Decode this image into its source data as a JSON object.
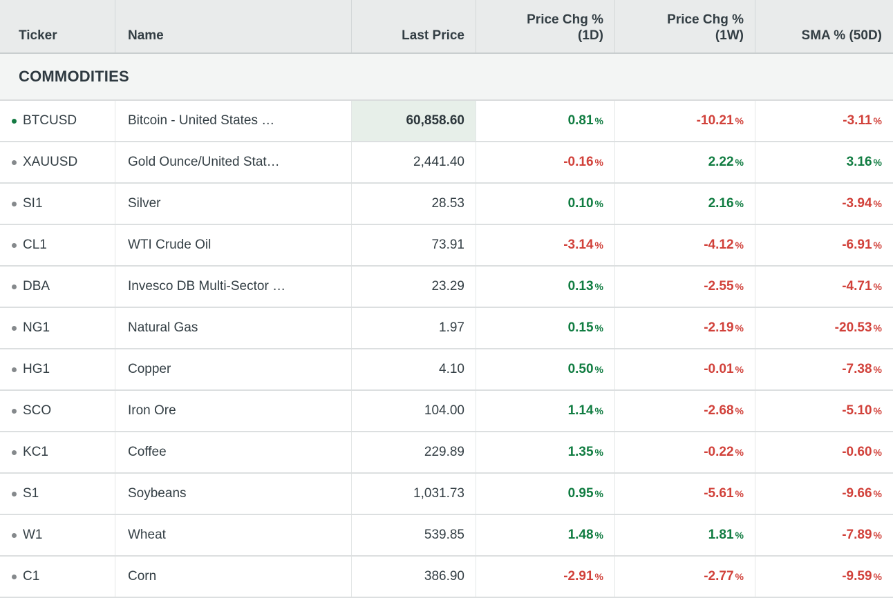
{
  "table": {
    "percent_suffix": "%",
    "columns": [
      {
        "key": "ticker",
        "lines": [
          "Ticker"
        ]
      },
      {
        "key": "name",
        "lines": [
          "Name"
        ]
      },
      {
        "key": "last_price",
        "lines": [
          "Last Price"
        ]
      },
      {
        "key": "chg_1d",
        "lines": [
          "Price Chg %",
          "(1D)"
        ]
      },
      {
        "key": "chg_1w",
        "lines": [
          "Price Chg %",
          "(1W)"
        ]
      },
      {
        "key": "sma_50d",
        "lines": [
          "SMA % (50D)"
        ]
      }
    ],
    "section": {
      "title": "COMMODITIES"
    },
    "rows": [
      {
        "ticker": "BTCUSD",
        "bullet": "green",
        "name": "Bitcoin - United States …",
        "last_price": "60,858.60",
        "price_highlight": true,
        "chg_1d": {
          "value": "0.81",
          "dir": "up"
        },
        "chg_1w": {
          "value": "-10.21",
          "dir": "down"
        },
        "sma_50d": {
          "value": "-3.11",
          "dir": "down"
        }
      },
      {
        "ticker": "XAUUSD",
        "bullet": "gray",
        "name": "Gold Ounce/United Stat…",
        "last_price": "2,441.40",
        "price_highlight": false,
        "chg_1d": {
          "value": "-0.16",
          "dir": "down"
        },
        "chg_1w": {
          "value": "2.22",
          "dir": "up"
        },
        "sma_50d": {
          "value": "3.16",
          "dir": "up"
        }
      },
      {
        "ticker": "SI1",
        "bullet": "gray",
        "name": "Silver",
        "last_price": "28.53",
        "price_highlight": false,
        "chg_1d": {
          "value": "0.10",
          "dir": "up"
        },
        "chg_1w": {
          "value": "2.16",
          "dir": "up"
        },
        "sma_50d": {
          "value": "-3.94",
          "dir": "down"
        }
      },
      {
        "ticker": "CL1",
        "bullet": "gray",
        "name": "WTI Crude Oil",
        "last_price": "73.91",
        "price_highlight": false,
        "chg_1d": {
          "value": "-3.14",
          "dir": "down"
        },
        "chg_1w": {
          "value": "-4.12",
          "dir": "down"
        },
        "sma_50d": {
          "value": "-6.91",
          "dir": "down"
        }
      },
      {
        "ticker": "DBA",
        "bullet": "gray",
        "name": "Invesco DB Multi-Sector …",
        "last_price": "23.29",
        "price_highlight": false,
        "chg_1d": {
          "value": "0.13",
          "dir": "up"
        },
        "chg_1w": {
          "value": "-2.55",
          "dir": "down"
        },
        "sma_50d": {
          "value": "-4.71",
          "dir": "down"
        }
      },
      {
        "ticker": "NG1",
        "bullet": "gray",
        "name": "Natural Gas",
        "last_price": "1.97",
        "price_highlight": false,
        "chg_1d": {
          "value": "0.15",
          "dir": "up"
        },
        "chg_1w": {
          "value": "-2.19",
          "dir": "down"
        },
        "sma_50d": {
          "value": "-20.53",
          "dir": "down"
        }
      },
      {
        "ticker": "HG1",
        "bullet": "gray",
        "name": "Copper",
        "last_price": "4.10",
        "price_highlight": false,
        "chg_1d": {
          "value": "0.50",
          "dir": "up"
        },
        "chg_1w": {
          "value": "-0.01",
          "dir": "down"
        },
        "sma_50d": {
          "value": "-7.38",
          "dir": "down"
        }
      },
      {
        "ticker": "SCO",
        "bullet": "gray",
        "name": "Iron Ore",
        "last_price": "104.00",
        "price_highlight": false,
        "chg_1d": {
          "value": "1.14",
          "dir": "up"
        },
        "chg_1w": {
          "value": "-2.68",
          "dir": "down"
        },
        "sma_50d": {
          "value": "-5.10",
          "dir": "down"
        }
      },
      {
        "ticker": "KC1",
        "bullet": "gray",
        "name": "Coffee",
        "last_price": "229.89",
        "price_highlight": false,
        "chg_1d": {
          "value": "1.35",
          "dir": "up"
        },
        "chg_1w": {
          "value": "-0.22",
          "dir": "down"
        },
        "sma_50d": {
          "value": "-0.60",
          "dir": "down"
        }
      },
      {
        "ticker": "S1",
        "bullet": "gray",
        "name": "Soybeans",
        "last_price": "1,031.73",
        "price_highlight": false,
        "chg_1d": {
          "value": "0.95",
          "dir": "up"
        },
        "chg_1w": {
          "value": "-5.61",
          "dir": "down"
        },
        "sma_50d": {
          "value": "-9.66",
          "dir": "down"
        }
      },
      {
        "ticker": "W1",
        "bullet": "gray",
        "name": "Wheat",
        "last_price": "539.85",
        "price_highlight": false,
        "chg_1d": {
          "value": "1.48",
          "dir": "up"
        },
        "chg_1w": {
          "value": "1.81",
          "dir": "up"
        },
        "sma_50d": {
          "value": "-7.89",
          "dir": "down"
        }
      },
      {
        "ticker": "C1",
        "bullet": "gray",
        "name": "Corn",
        "last_price": "386.90",
        "price_highlight": false,
        "chg_1d": {
          "value": "-2.91",
          "dir": "down"
        },
        "chg_1w": {
          "value": "-2.77",
          "dir": "down"
        },
        "sma_50d": {
          "value": "-9.59",
          "dir": "down"
        }
      }
    ]
  },
  "colors": {
    "positive": "#107c41",
    "negative": "#d1413a",
    "header_bg": "#e9ebeb",
    "section_bg": "#f3f5f4",
    "price_highlight_bg": "#e7efe9",
    "text": "#333e44",
    "bullet_green": "#157a43",
    "bullet_gray": "#85898c"
  }
}
